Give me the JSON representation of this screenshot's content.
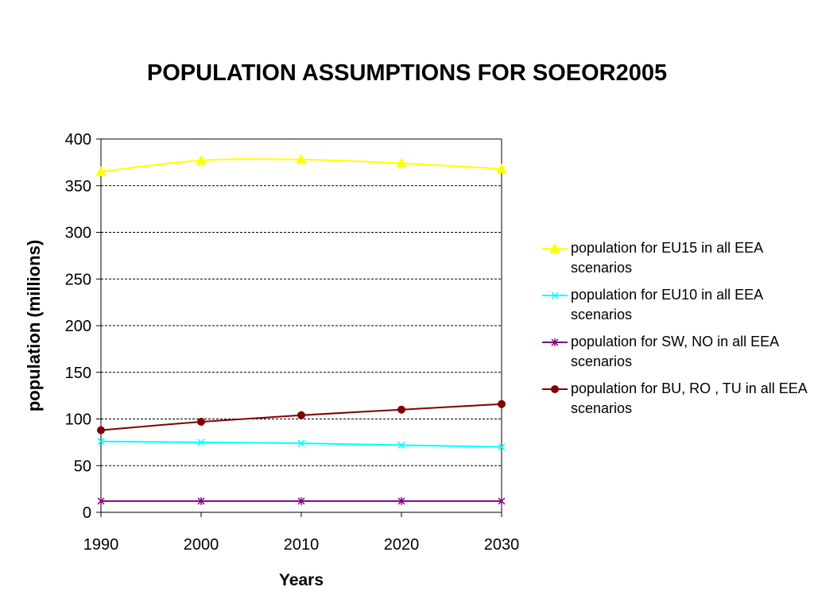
{
  "chart_data": {
    "type": "line",
    "title": "POPULATION ASSUMPTIONS FOR SOEOR2005",
    "xlabel": "Years",
    "ylabel": "population (millions)",
    "x": [
      1990,
      2000,
      2010,
      2020,
      2030
    ],
    "x_ticks": [
      "1990",
      "2000",
      "2010",
      "2020",
      "2030"
    ],
    "ylim": [
      0,
      400
    ],
    "y_ticks": [
      "0",
      "50",
      "100",
      "150",
      "200",
      "250",
      "300",
      "350",
      "400"
    ],
    "grid": "horizontal dashed",
    "legend_position": "right",
    "series": [
      {
        "name": "population for EU15 in all EEA scenarios",
        "values": [
          365,
          377,
          378,
          374,
          368
        ],
        "color": "#ffff00",
        "marker": "triangle"
      },
      {
        "name": "population for EU10 in all EEA scenarios",
        "values": [
          76,
          75,
          74,
          72,
          70
        ],
        "color": "#00ffff",
        "marker": "x"
      },
      {
        "name": "population for SW, NO in all EEA scenarios",
        "values": [
          12,
          12,
          12,
          12,
          12
        ],
        "color": "#800080",
        "marker": "star"
      },
      {
        "name": "population for BU, RO , TU in all EEA scenarios",
        "values": [
          88,
          97,
          104,
          110,
          116
        ],
        "color": "#800000",
        "marker": "circle"
      }
    ]
  }
}
